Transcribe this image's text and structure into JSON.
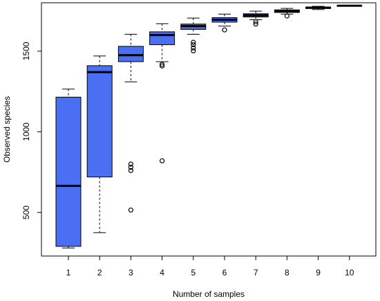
{
  "chart_data": {
    "type": "boxplot",
    "title": "",
    "xlabel": "Number of samples",
    "ylabel": "Observed species",
    "ylim": [
      230,
      1800
    ],
    "yticks": [
      500,
      1000,
      1500
    ],
    "grid": false,
    "box_color": "#4a6ff2",
    "categories": [
      "1",
      "2",
      "3",
      "4",
      "5",
      "6",
      "7",
      "8",
      "9",
      "10"
    ],
    "boxes": [
      {
        "category": "1",
        "whisker_low": 280,
        "q1": 290,
        "median": 665,
        "q3": 1215,
        "whisker_high": 1265,
        "outliers": []
      },
      {
        "category": "2",
        "whisker_low": 375,
        "q1": 720,
        "median": 1370,
        "q3": 1410,
        "whisker_high": 1470,
        "outliers": []
      },
      {
        "category": "3",
        "whisker_low": 1310,
        "q1": 1435,
        "median": 1475,
        "q3": 1530,
        "whisker_high": 1605,
        "outliers": [
          515,
          760,
          780,
          800
        ]
      },
      {
        "category": "4",
        "whisker_low": 1435,
        "q1": 1540,
        "median": 1600,
        "q3": 1620,
        "whisker_high": 1670,
        "outliers": [
          820,
          1408,
          1418
        ]
      },
      {
        "category": "5",
        "whisker_low": 1605,
        "q1": 1635,
        "median": 1655,
        "q3": 1668,
        "whisker_high": 1705,
        "outliers": [
          1502,
          1520,
          1540,
          1555
        ]
      },
      {
        "category": "6",
        "whisker_low": 1655,
        "q1": 1680,
        "median": 1695,
        "q3": 1708,
        "whisker_high": 1730,
        "outliers": [
          1632
        ]
      },
      {
        "category": "7",
        "whisker_low": 1695,
        "q1": 1712,
        "median": 1722,
        "q3": 1732,
        "whisker_high": 1748,
        "outliers": [
          1668,
          1682
        ]
      },
      {
        "category": "8",
        "whisker_low": 1730,
        "q1": 1740,
        "median": 1748,
        "q3": 1756,
        "whisker_high": 1765,
        "outliers": [
          1718
        ]
      },
      {
        "category": "9",
        "whisker_low": 1758,
        "q1": 1764,
        "median": 1770,
        "q3": 1774,
        "whisker_high": 1778,
        "outliers": []
      },
      {
        "category": "10",
        "whisker_low": 1782,
        "q1": 1782,
        "median": 1782,
        "q3": 1782,
        "whisker_high": 1782,
        "outliers": []
      }
    ]
  }
}
